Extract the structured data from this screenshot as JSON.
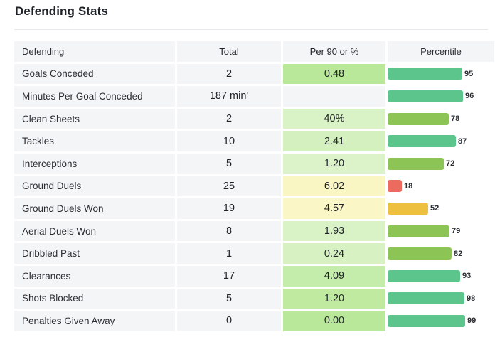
{
  "title": "Defending Stats",
  "headers": {
    "stat": "Defending",
    "total": "Total",
    "per90": "Per 90 or %",
    "percentile": "Percentile"
  },
  "rows": [
    {
      "label": "Goals Conceded",
      "total": "2",
      "per90": "0.48",
      "per90_color": "#b9e89a",
      "percentile": 95,
      "percentile_label": "95",
      "bar_color": "#5cc58b"
    },
    {
      "label": "Minutes Per Goal Conceded",
      "total": "187 min'",
      "per90": "",
      "per90_color": "#f4f5f7",
      "percentile": 96,
      "percentile_label": "96",
      "bar_color": "#5cc58b"
    },
    {
      "label": "Clean Sheets",
      "total": "2",
      "per90": "40%",
      "per90_color": "#d9f2c6",
      "percentile": 78,
      "percentile_label": "78",
      "bar_color": "#8cc556"
    },
    {
      "label": "Tackles",
      "total": "10",
      "per90": "2.41",
      "per90_color": "#d4f0bf",
      "percentile": 87,
      "percentile_label": "87",
      "bar_color": "#5cc58b"
    },
    {
      "label": "Interceptions",
      "total": "5",
      "per90": "1.20",
      "per90_color": "#dcf3ca",
      "percentile": 72,
      "percentile_label": "72",
      "bar_color": "#8cc556"
    },
    {
      "label": "Ground Duels",
      "total": "25",
      "per90": "6.02",
      "per90_color": "#faf6c4",
      "percentile": 18,
      "percentile_label": "18",
      "bar_color": "#ec6b5e"
    },
    {
      "label": "Ground Duels Won",
      "total": "19",
      "per90": "4.57",
      "per90_color": "#fbf6c6",
      "percentile": 52,
      "percentile_label": "52",
      "bar_color": "#eec03f"
    },
    {
      "label": "Aerial Duels Won",
      "total": "8",
      "per90": "1.93",
      "per90_color": "#d9f2c6",
      "percentile": 79,
      "percentile_label": "79",
      "bar_color": "#8cc556"
    },
    {
      "label": "Dribbled Past",
      "total": "1",
      "per90": "0.24",
      "per90_color": "#d7f1c2",
      "percentile": 82,
      "percentile_label": "82",
      "bar_color": "#8cc556"
    },
    {
      "label": "Clearances",
      "total": "17",
      "per90": "4.09",
      "per90_color": "#c4ecaa",
      "percentile": 93,
      "percentile_label": "93",
      "bar_color": "#5cc58b"
    },
    {
      "label": "Shots Blocked",
      "total": "5",
      "per90": "1.20",
      "per90_color": "#bfea9f",
      "percentile": 98,
      "percentile_label": "98",
      "bar_color": "#5cc58b"
    },
    {
      "label": "Penalties Given Away",
      "total": "0",
      "per90": "0.00",
      "per90_color": "#b9e89a",
      "percentile": 99,
      "percentile_label": "99",
      "bar_color": "#5cc58b"
    }
  ]
}
